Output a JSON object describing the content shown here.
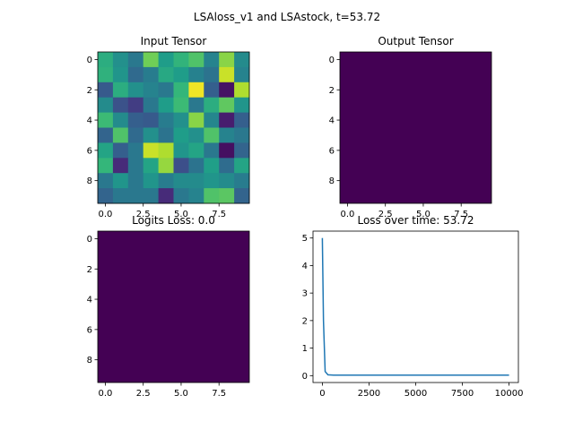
{
  "suptitle": "LSAloss_v1 and LSAstock, t=53.72",
  "colors": {
    "viridis_low": "#440154",
    "line": "#1f77b4",
    "axis": "#000000"
  },
  "chart_data": [
    {
      "id": "input",
      "type": "heatmap",
      "title": "Input Tensor",
      "colormap": "viridis",
      "vrange": [
        0,
        1
      ],
      "xticks": [
        "0.0",
        "2.5",
        "5.0",
        "7.5"
      ],
      "yticks": [
        "0",
        "2",
        "4",
        "6",
        "8"
      ],
      "values": [
        [
          0.62,
          0.5,
          0.4,
          0.78,
          0.55,
          0.65,
          0.72,
          0.45,
          0.82,
          0.48
        ],
        [
          0.64,
          0.52,
          0.34,
          0.42,
          0.6,
          0.55,
          0.44,
          0.38,
          0.92,
          0.45
        ],
        [
          0.28,
          0.62,
          0.5,
          0.45,
          0.4,
          0.66,
          0.98,
          0.3,
          0.05,
          0.88
        ],
        [
          0.48,
          0.25,
          0.18,
          0.4,
          0.55,
          0.68,
          0.4,
          0.62,
          0.75,
          0.52
        ],
        [
          0.68,
          0.48,
          0.3,
          0.28,
          0.42,
          0.5,
          0.82,
          0.46,
          0.08,
          0.3
        ],
        [
          0.32,
          0.72,
          0.34,
          0.5,
          0.38,
          0.55,
          0.5,
          0.72,
          0.45,
          0.4
        ],
        [
          0.58,
          0.3,
          0.4,
          0.92,
          0.88,
          0.52,
          0.58,
          0.4,
          0.04,
          0.32
        ],
        [
          0.66,
          0.12,
          0.4,
          0.58,
          0.84,
          0.24,
          0.38,
          0.56,
          0.35,
          0.58
        ],
        [
          0.4,
          0.52,
          0.4,
          0.52,
          0.42,
          0.48,
          0.48,
          0.52,
          0.48,
          0.42
        ],
        [
          0.32,
          0.4,
          0.4,
          0.4,
          0.12,
          0.4,
          0.45,
          0.72,
          0.74,
          0.32
        ]
      ]
    },
    {
      "id": "output",
      "type": "heatmap",
      "title": "Output Tensor",
      "colormap": "viridis",
      "uniform_value": 0,
      "xticks": [
        "0.0",
        "2.5",
        "5.0",
        "7.5"
      ],
      "yticks": [
        "0",
        "2",
        "4",
        "6",
        "8"
      ]
    },
    {
      "id": "logits",
      "type": "heatmap",
      "title": "Logits Loss: 0.0",
      "colormap": "viridis",
      "uniform_value": 0,
      "xticks": [
        "0.0",
        "2.5",
        "5.0",
        "7.5"
      ],
      "yticks": [
        "0",
        "2",
        "4",
        "6",
        "8"
      ]
    },
    {
      "id": "loss",
      "type": "line",
      "title": "Loss over time: 53.72",
      "xlim": [
        -500,
        10500
      ],
      "ylim": [
        -0.25,
        5.25
      ],
      "xticks": [
        0,
        2500,
        5000,
        7500,
        10000
      ],
      "yticks": [
        0,
        1,
        2,
        3,
        4,
        5
      ],
      "series": [
        {
          "x": [
            0,
            60,
            150,
            300,
            600,
            1000,
            2000,
            5000,
            10000
          ],
          "y": [
            5.0,
            2.0,
            0.15,
            0.03,
            0.02,
            0.02,
            0.02,
            0.02,
            0.02
          ]
        }
      ]
    }
  ]
}
